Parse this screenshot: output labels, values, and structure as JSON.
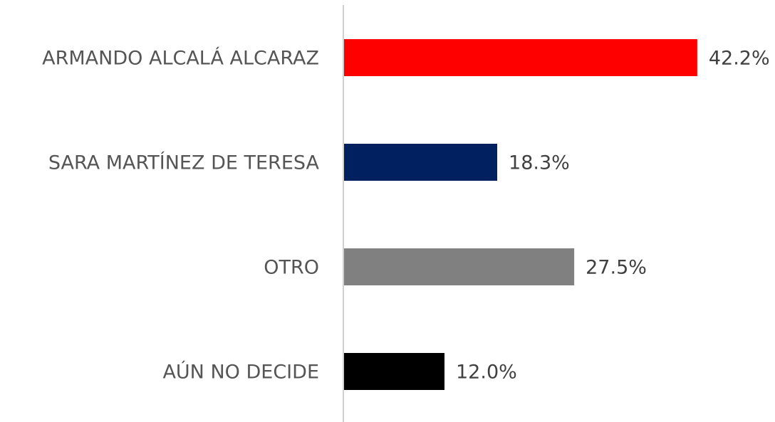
{
  "chart_data": {
    "type": "bar",
    "orientation": "horizontal",
    "categories": [
      "ARMANDO ALCALÁ ALCARAZ",
      "SARA MARTÍNEZ DE TERESA",
      "OTRO",
      "AÚN NO DECIDE"
    ],
    "values": [
      42.2,
      18.3,
      27.5,
      12.0
    ],
    "value_labels": [
      "42.2%",
      "18.3%",
      "27.5%",
      "12.0%"
    ],
    "colors": [
      "#ff0000",
      "#002060",
      "#808080",
      "#000000"
    ]
  }
}
